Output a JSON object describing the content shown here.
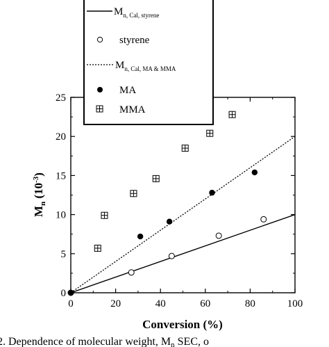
{
  "chart_data": {
    "type": "scatter",
    "xlabel": "Conversion (%)",
    "ylabel": "M",
    "ylabel_sub": "n",
    "ylabel_suffix": " (10",
    "ylabel_sup": "-3",
    "ylabel_close": ")",
    "xlim": [
      0,
      100
    ],
    "ylim": [
      0,
      25
    ],
    "x_ticks": [
      0,
      20,
      40,
      60,
      80,
      100
    ],
    "y_ticks": [
      0,
      5,
      10,
      15,
      20,
      25
    ],
    "grid": false,
    "legend_position": "top-center",
    "series": [
      {
        "name": "M",
        "name_sub": "n, Cal, styrene",
        "kind": "line",
        "style": "solid",
        "x": [
          0,
          100
        ],
        "y": [
          0,
          10
        ]
      },
      {
        "name": "styrene",
        "kind": "scatter",
        "marker": "open-circle",
        "x": [
          0,
          27,
          45,
          66,
          86
        ],
        "y": [
          0,
          2.6,
          4.7,
          7.3,
          9.4
        ]
      },
      {
        "name": "M",
        "name_sub": "n, Cal, MA & MMA",
        "kind": "line",
        "style": "dotted",
        "x": [
          0,
          100
        ],
        "y": [
          0,
          20
        ]
      },
      {
        "name": "MA",
        "kind": "scatter",
        "marker": "filled-circle",
        "x": [
          0,
          31,
          44,
          63,
          82
        ],
        "y": [
          0,
          7.2,
          9.1,
          12.8,
          15.4
        ]
      },
      {
        "name": "MMA",
        "kind": "scatter",
        "marker": "boxed-plus",
        "x": [
          12,
          15,
          28,
          38,
          51,
          62,
          72
        ],
        "y": [
          5.7,
          9.9,
          12.7,
          14.6,
          18.5,
          20.4,
          22.8
        ]
      }
    ]
  },
  "caption": "2. Dependence of molecular weight, M",
  "caption_sub": "n",
  "caption_tail": " SEC, o"
}
